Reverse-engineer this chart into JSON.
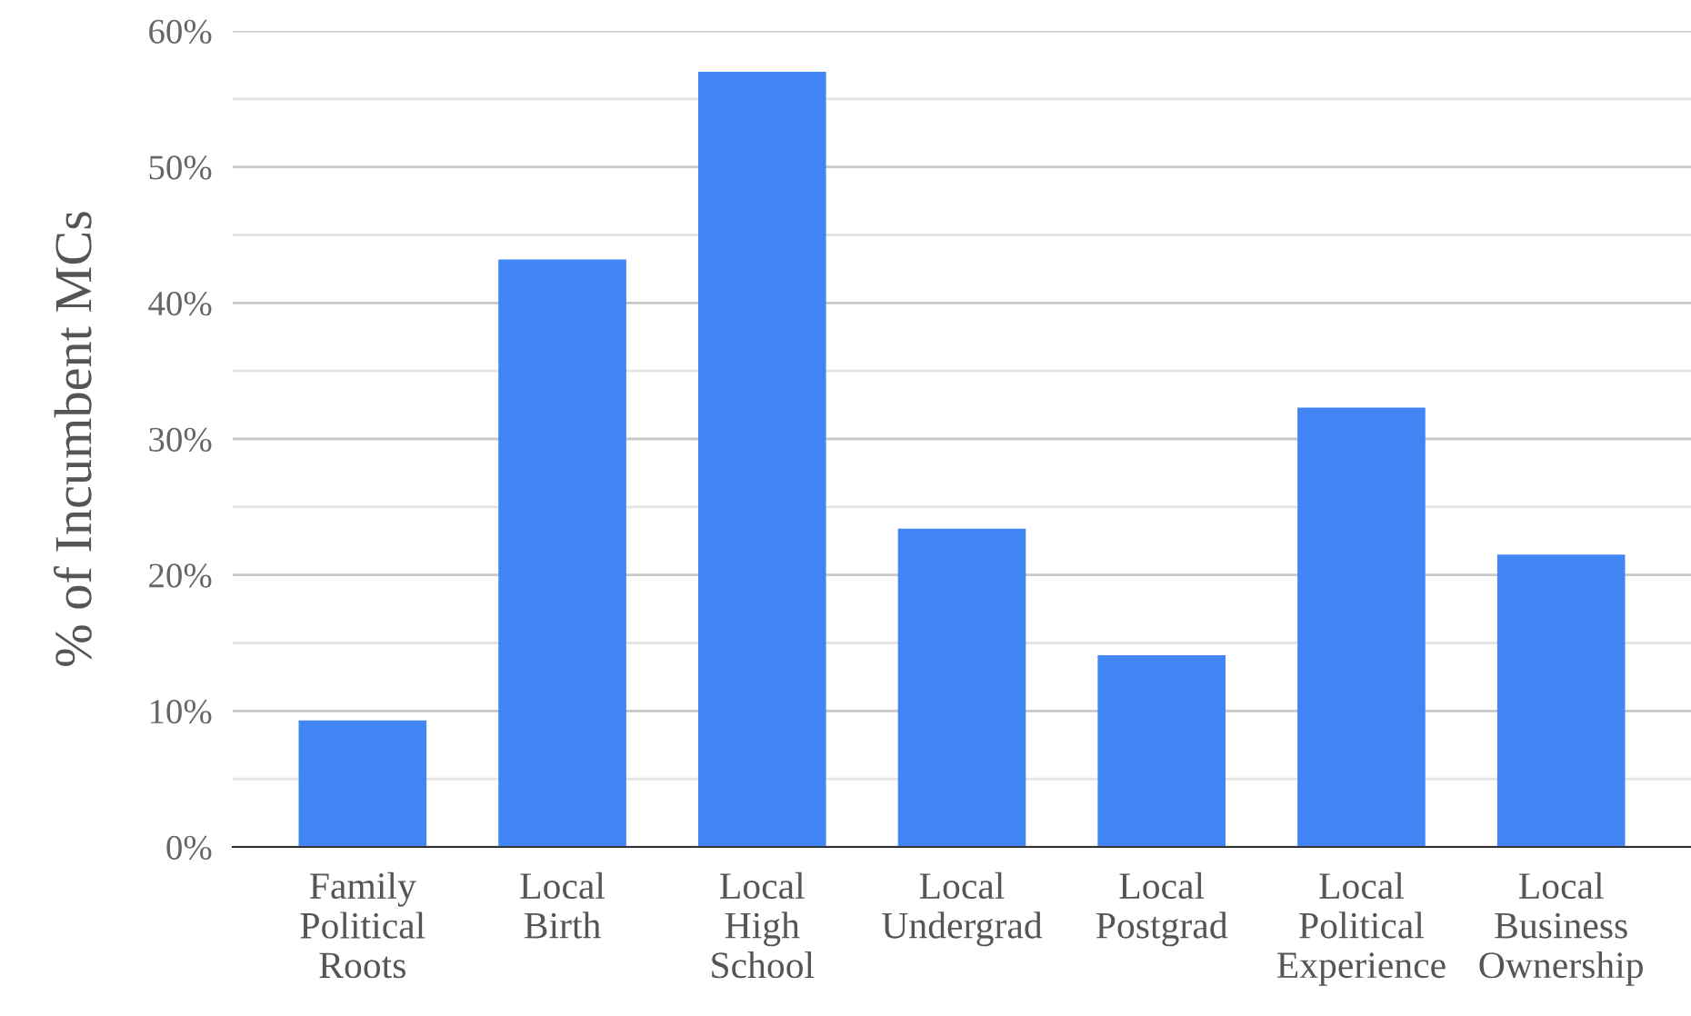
{
  "chart_data": {
    "type": "bar",
    "ylabel": "% of Incumbent MCs",
    "categories": [
      "Family\nPolitical\nRoots",
      "Local\nBirth",
      "Local\nHigh\nSchool",
      "Local\nUndergrad",
      "Local\nPostgrad",
      "Local\nPolitical\nExperience",
      "Local\nBusiness\nOwnership"
    ],
    "values": [
      9.3,
      43.2,
      57.0,
      23.4,
      14.1,
      32.3,
      21.5
    ],
    "color": "#4285f4",
    "ylim": [
      0,
      60
    ],
    "yticks": [
      {
        "value": 0,
        "label": "0%"
      },
      {
        "value": 5,
        "label": null
      },
      {
        "value": 10,
        "label": "10%"
      },
      {
        "value": 15,
        "label": null
      },
      {
        "value": 20,
        "label": "20%"
      },
      {
        "value": 25,
        "label": null
      },
      {
        "value": 30,
        "label": "30%"
      },
      {
        "value": 35,
        "label": null
      },
      {
        "value": 40,
        "label": "40%"
      },
      {
        "value": 45,
        "label": null
      },
      {
        "value": 50,
        "label": "50%"
      },
      {
        "value": 55,
        "label": null
      },
      {
        "value": 60,
        "label": "60%"
      }
    ],
    "grid": "y"
  }
}
